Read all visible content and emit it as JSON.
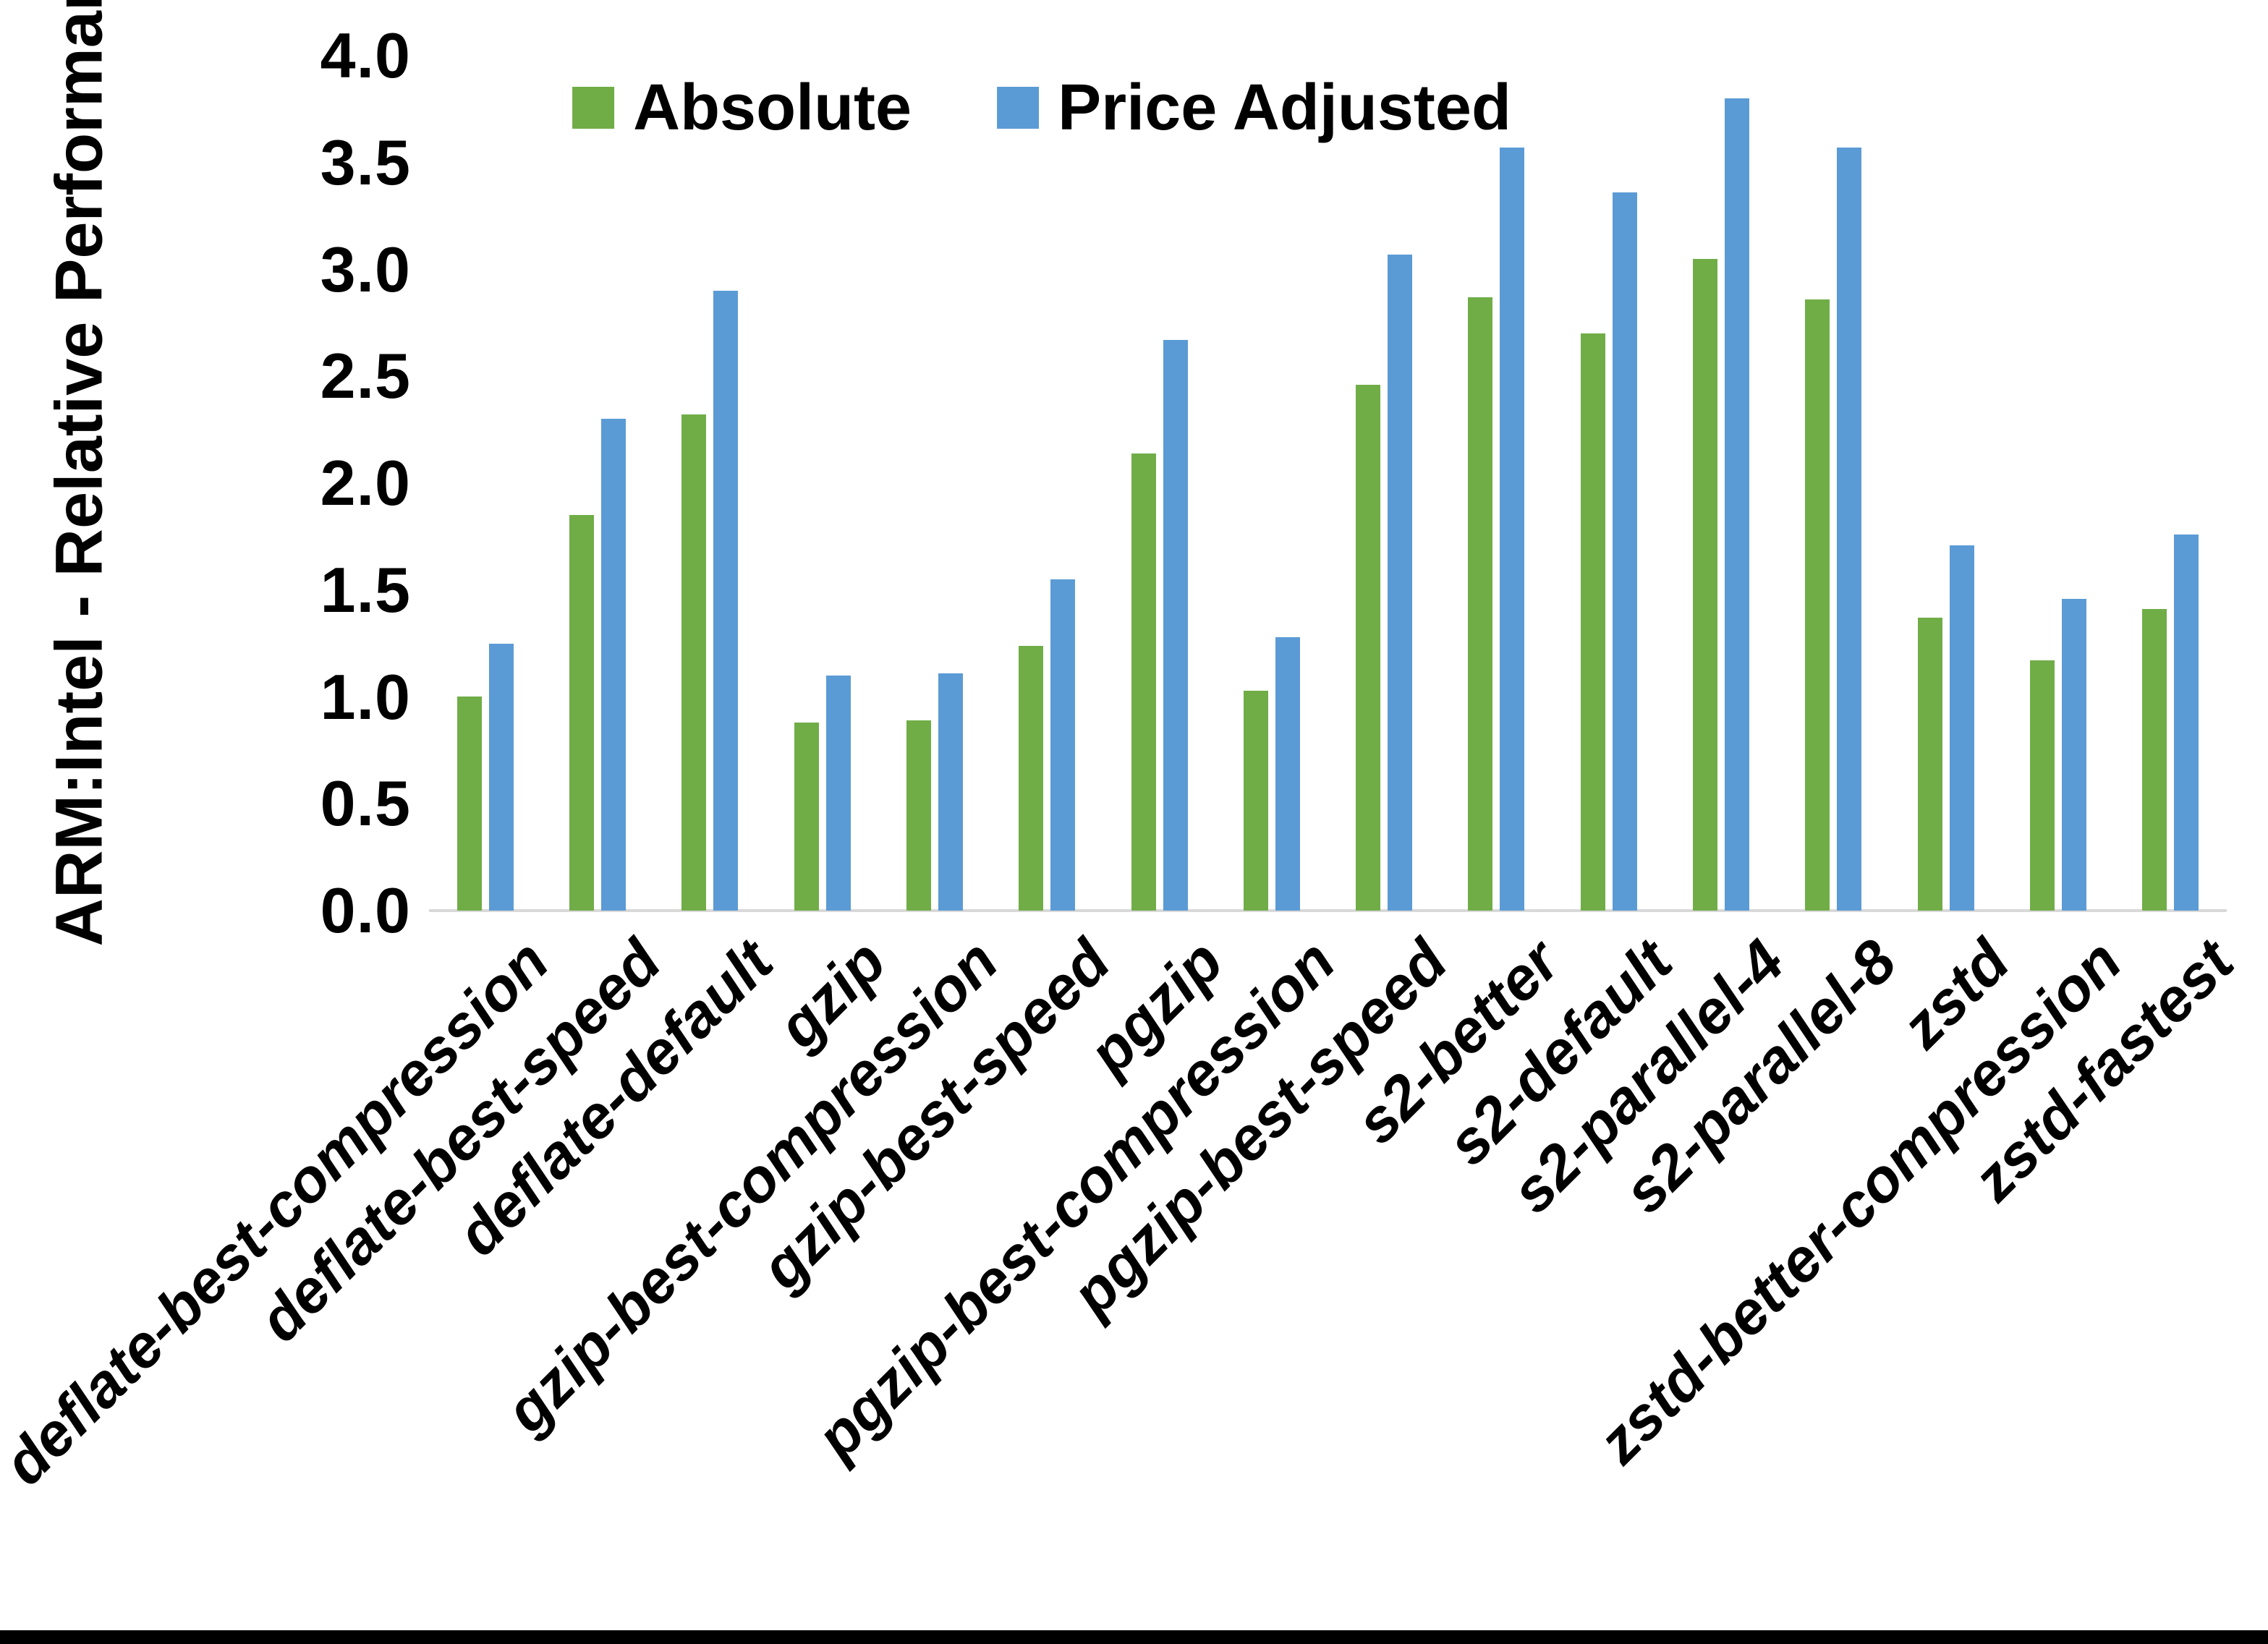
{
  "chart_data": {
    "type": "bar",
    "title": "",
    "xlabel": "",
    "ylabel": "ARM:Intel - Relative Performance",
    "ylim": [
      0.0,
      4.0
    ],
    "ytick_step": 0.5,
    "ytick_labels": [
      "0.0",
      "0.5",
      "1.0",
      "1.5",
      "2.0",
      "2.5",
      "3.0",
      "3.5",
      "4.0"
    ],
    "grid": "off",
    "legend_position": "top-center",
    "axis_line_color": "#D9D9D9",
    "text_color": "#000000",
    "categories": [
      "deflate-best-compression",
      "deflate-best-speed",
      "deflate-default",
      "gzip",
      "gzip-best-compression",
      "gzip-best-speed",
      "pgzip",
      "pgzip-best-compression",
      "pgzip-best-speed",
      "s2-better",
      "s2-default",
      "s2-parallel-4",
      "s2-parallel-8",
      "zstd",
      "zstd-better-compression",
      "zstd-fastest"
    ],
    "series": [
      {
        "name": "Absolute",
        "color": "#70AD47",
        "values": [
          1.0,
          1.85,
          2.32,
          0.88,
          0.89,
          1.24,
          2.14,
          1.03,
          2.46,
          2.87,
          2.7,
          3.05,
          2.86,
          1.37,
          1.17,
          1.41
        ]
      },
      {
        "name": "Price Adjusted",
        "color": "#5B9BD5",
        "values": [
          1.25,
          2.3,
          2.9,
          1.1,
          1.11,
          1.55,
          2.67,
          1.28,
          3.07,
          3.57,
          3.36,
          3.8,
          3.57,
          1.71,
          1.46,
          1.76
        ]
      }
    ]
  }
}
